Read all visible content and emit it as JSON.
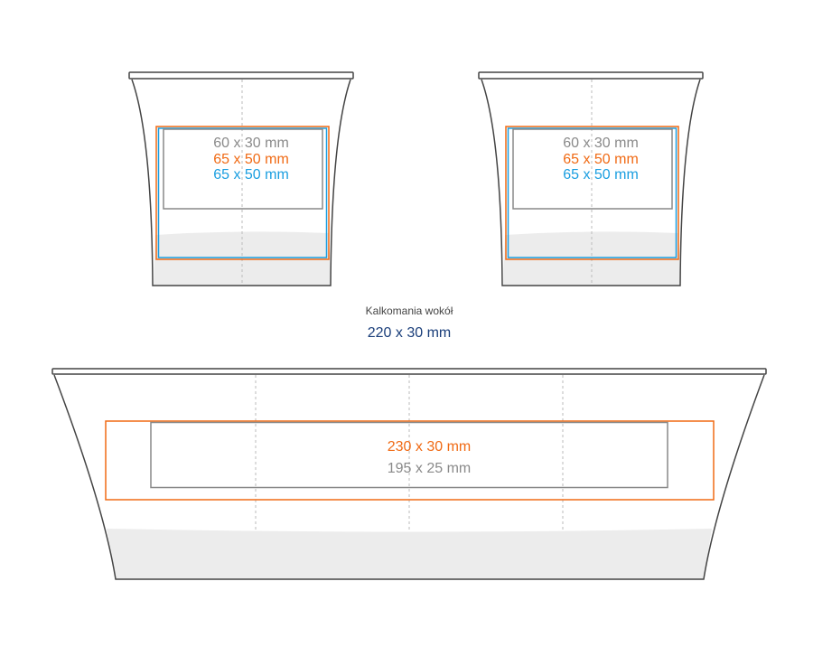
{
  "colors": {
    "orange": "#f06a14",
    "blue": "#1a9ee0",
    "gray": "#8a8a8a",
    "navy": "#1a3e7a",
    "outline": "#444444",
    "fill": "#ececec"
  },
  "cup_left": {
    "labels": [
      "60 x 30 mm",
      "65 x 50 mm",
      "65 x 50 mm"
    ]
  },
  "cup_right": {
    "labels": [
      "60 x 30 mm",
      "65 x 50 mm",
      "65 x 50 mm"
    ]
  },
  "wrap": {
    "caption": "Kalkomania wokół",
    "size": "220 x 30 mm"
  },
  "bowl": {
    "labels": [
      "230 x 30 mm",
      "195 x 25 mm"
    ]
  }
}
